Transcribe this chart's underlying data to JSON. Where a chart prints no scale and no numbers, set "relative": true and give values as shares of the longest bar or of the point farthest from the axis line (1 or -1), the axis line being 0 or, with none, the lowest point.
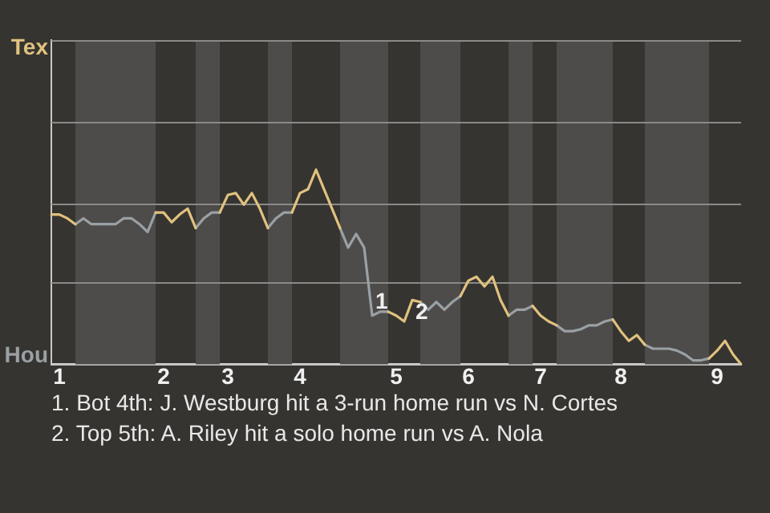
{
  "chart_data": {
    "type": "line",
    "relative": true,
    "categories": [
      null,
      "1",
      null,
      null,
      null,
      null,
      null,
      null,
      null,
      null,
      null,
      null,
      null,
      null,
      "2",
      null,
      null,
      null,
      null,
      null,
      null,
      null,
      "3",
      null,
      null,
      null,
      null,
      null,
      null,
      null,
      null,
      "4",
      null,
      null,
      null,
      null,
      null,
      null,
      null,
      null,
      null,
      null,
      null,
      "5",
      null,
      null,
      null,
      null,
      null,
      null,
      null,
      null,
      "6",
      null,
      null,
      null,
      null,
      null,
      null,
      null,
      null,
      "7",
      null,
      null,
      null,
      null,
      null,
      null,
      null,
      null,
      null,
      "8",
      null,
      null,
      null,
      null,
      null,
      null,
      null,
      null,
      null,
      null,
      null,
      "9",
      null,
      null,
      null
    ],
    "ref_lines": [
      {
        "axis": "y",
        "value": 0.42
      },
      {
        "axis": "y",
        "value": 0.83
      },
      {
        "axis": "y",
        "value": 1.25
      }
    ],
    "legend": false,
    "marker": "none",
    "line_style": "solid",
    "series": [
      {
        "name": "Tex",
        "color": "#e0c27f",
        "values": [
          0.77,
          0.77,
          0.75,
          0.72,
          null,
          null,
          null,
          null,
          null,
          null,
          null,
          null,
          null,
          0.78,
          0.78,
          0.73,
          0.77,
          0.8,
          0.7,
          null,
          null,
          0.78,
          0.87,
          0.88,
          0.82,
          0.88,
          0.8,
          0.7,
          null,
          null,
          0.78,
          0.88,
          0.9,
          1,
          0.9,
          0.8,
          0.7,
          null,
          null,
          null,
          null,
          null,
          0.27,
          0.25,
          0.22,
          0.33,
          0.32,
          null,
          null,
          null,
          null,
          0.35,
          0.43,
          0.45,
          0.4,
          0.45,
          0.33,
          0.25,
          null,
          null,
          0.3,
          0.25,
          0.22,
          0.2,
          null,
          null,
          null,
          null,
          null,
          null,
          0.23,
          0.17,
          0.12,
          0.15,
          0.1,
          null,
          null,
          null,
          null,
          null,
          null,
          null,
          0.03,
          0.07,
          0.12,
          0.05,
          0
        ]
      },
      {
        "name": "Hou",
        "color": "#9aa0a4",
        "values": [
          null,
          null,
          null,
          0.72,
          0.75,
          0.72,
          0.72,
          0.72,
          0.72,
          0.75,
          0.75,
          0.72,
          0.68,
          0.78,
          null,
          null,
          null,
          null,
          0.7,
          0.75,
          0.78,
          0.78,
          null,
          null,
          null,
          null,
          null,
          0.7,
          0.75,
          0.78,
          0.78,
          null,
          null,
          null,
          null,
          null,
          0.7,
          0.6,
          0.67,
          0.6,
          0.25,
          0.27,
          0.27,
          null,
          null,
          null,
          0.32,
          0.28,
          0.32,
          0.28,
          0.32,
          0.35,
          null,
          null,
          null,
          null,
          null,
          0.25,
          0.28,
          0.28,
          0.3,
          null,
          null,
          0.2,
          0.17,
          0.17,
          0.18,
          0.2,
          0.2,
          0.22,
          0.23,
          null,
          null,
          null,
          0.1,
          0.08,
          0.08,
          0.08,
          0.07,
          0.05,
          0.02,
          0.02,
          0.03,
          null,
          null,
          null,
          null
        ]
      }
    ],
    "annotations": [
      {
        "text": "1",
        "y": 0.25
      },
      {
        "text": "2",
        "y": 0.33
      },
      "1. Bot 4th: J. Westburg hit a 3-run home run vs N. Cortes",
      "2. Top 5th: A. Riley hit a solo home run vs A. Nola"
    ]
  }
}
